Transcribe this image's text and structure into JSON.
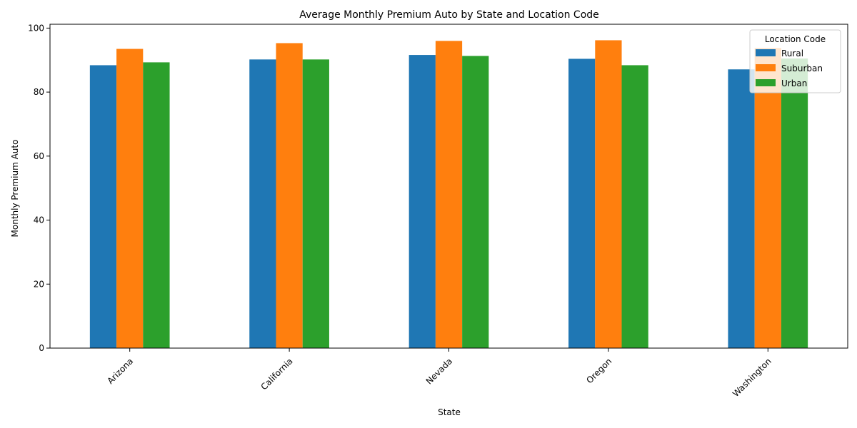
{
  "chart_data": {
    "type": "bar",
    "title": "Average Monthly Premium Auto by State and Location Code",
    "xlabel": "State",
    "ylabel": "Monthly Premium Auto",
    "categories": [
      "Arizona",
      "California",
      "Nevada",
      "Oregon",
      "Washington"
    ],
    "series": [
      {
        "name": "Rural",
        "values": [
          88.4,
          90.2,
          91.6,
          90.4,
          87.1
        ],
        "color": "#1f77b4"
      },
      {
        "name": "Suburban",
        "values": [
          93.5,
          95.3,
          96.0,
          96.2,
          93.8
        ],
        "color": "#ff7f0e"
      },
      {
        "name": "Urban",
        "values": [
          89.3,
          90.2,
          91.3,
          88.4,
          90.5
        ],
        "color": "#2ca02c"
      }
    ],
    "ylim": [
      0,
      101.2
    ],
    "yticks": [
      0,
      20,
      40,
      60,
      80,
      100
    ],
    "legend": {
      "title": "Location Code",
      "position": "top-right"
    },
    "grid": false,
    "x_tick_rotation": "45 degrees"
  }
}
